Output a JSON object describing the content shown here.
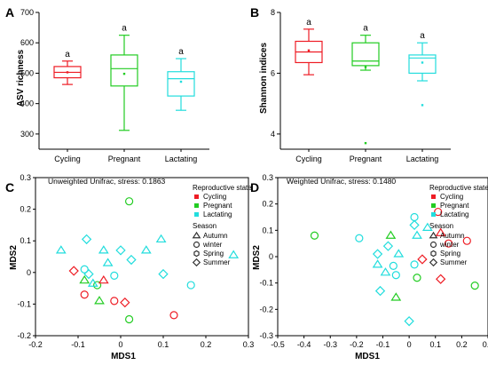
{
  "colors": {
    "cycling": "#ee1c24",
    "pregnant": "#22cc22",
    "lactating": "#22dddd"
  },
  "chart_data": [
    {
      "panel": "A",
      "type": "box",
      "categories": [
        "Cycling",
        "Pregnant",
        "Lactating"
      ],
      "ylabel": "ASV richness",
      "ylim": [
        250,
        700
      ],
      "yticks": [
        300,
        400,
        500,
        600,
        700
      ],
      "significance": [
        "a",
        "a",
        "a"
      ],
      "boxes": [
        {
          "category": "Cycling",
          "color_key": "cycling",
          "whisker_low": 463,
          "q1": 485,
          "median": 503,
          "q3": 522,
          "whisker_high": 540,
          "mean": 503
        },
        {
          "category": "Pregnant",
          "color_key": "pregnant",
          "whisker_low": 312,
          "q1": 458,
          "median": 515,
          "q3": 560,
          "whisker_high": 625,
          "mean": 498
        },
        {
          "category": "Lactating",
          "color_key": "lactating",
          "whisker_low": 378,
          "q1": 425,
          "median": 482,
          "q3": 505,
          "whisker_high": 548,
          "mean": 472
        }
      ],
      "outliers": []
    },
    {
      "panel": "B",
      "type": "box",
      "categories": [
        "Cycling",
        "Pregnant",
        "Lactating"
      ],
      "ylabel": "Shannon indices",
      "ylim": [
        3.5,
        8
      ],
      "yticks": [
        4,
        6,
        8
      ],
      "significance": [
        "a",
        "a",
        "a"
      ],
      "boxes": [
        {
          "category": "Cycling",
          "color_key": "cycling",
          "whisker_low": 5.95,
          "q1": 6.35,
          "median": 6.7,
          "q3": 7.05,
          "whisker_high": 7.45,
          "mean": 6.75
        },
        {
          "category": "Pregnant",
          "color_key": "pregnant",
          "whisker_low": 6.1,
          "q1": 6.25,
          "median": 6.4,
          "q3": 7.0,
          "whisker_high": 7.25,
          "mean": 6.2
        },
        {
          "category": "Lactating",
          "color_key": "lactating",
          "whisker_low": 5.75,
          "q1": 6.0,
          "median": 6.5,
          "q3": 6.6,
          "whisker_high": 7.0,
          "mean": 6.35
        }
      ],
      "outliers": [
        {
          "category": "Pregnant",
          "value": 3.7
        },
        {
          "category": "Lactating",
          "value": 4.95
        }
      ]
    },
    {
      "panel": "C",
      "type": "scatter",
      "annotation": "Unweighted Unifrac, stress: 0.1863",
      "xlabel": "MDS1",
      "ylabel": "MDS2",
      "xlim": [
        -0.2,
        0.3
      ],
      "ylim": [
        -0.2,
        0.3
      ],
      "xticks": [
        -0.2,
        -0.1,
        0.0,
        0.1,
        0.2,
        0.3
      ],
      "yticks": [
        -0.2,
        -0.1,
        0.0,
        0.1,
        0.2,
        0.3
      ],
      "legend": {
        "reproductive_title": "Reproductive state",
        "reproductive": [
          {
            "label": "Cycling",
            "color_key": "cycling"
          },
          {
            "label": "Pregnant",
            "color_key": "pregnant"
          },
          {
            "label": "Lactating",
            "color_key": "lactating"
          }
        ],
        "season_title": "Season",
        "season": [
          {
            "label": "Autumn",
            "shape": "triangle"
          },
          {
            "label": "winter",
            "shape": "circle"
          },
          {
            "label": "Spring",
            "shape": "hexagon"
          },
          {
            "label": "Summer",
            "shape": "diamond"
          }
        ]
      },
      "points": [
        {
          "x": 0.02,
          "y": 0.225,
          "state": "pregnant",
          "shape": "circle"
        },
        {
          "x": -0.14,
          "y": 0.07,
          "state": "lactating",
          "shape": "triangle"
        },
        {
          "x": -0.08,
          "y": 0.105,
          "state": "lactating",
          "shape": "diamond"
        },
        {
          "x": -0.04,
          "y": 0.07,
          "state": "lactating",
          "shape": "triangle"
        },
        {
          "x": 0.0,
          "y": 0.07,
          "state": "lactating",
          "shape": "diamond"
        },
        {
          "x": 0.06,
          "y": 0.07,
          "state": "lactating",
          "shape": "triangle"
        },
        {
          "x": 0.095,
          "y": 0.105,
          "state": "lactating",
          "shape": "triangle"
        },
        {
          "x": 0.265,
          "y": 0.055,
          "state": "lactating",
          "shape": "triangle"
        },
        {
          "x": -0.03,
          "y": 0.03,
          "state": "lactating",
          "shape": "triangle"
        },
        {
          "x": 0.025,
          "y": 0.04,
          "state": "lactating",
          "shape": "diamond"
        },
        {
          "x": -0.11,
          "y": 0.005,
          "state": "cycling",
          "shape": "diamond"
        },
        {
          "x": -0.085,
          "y": 0.01,
          "state": "lactating",
          "shape": "circle"
        },
        {
          "x": -0.075,
          "y": -0.005,
          "state": "lactating",
          "shape": "diamond"
        },
        {
          "x": 0.1,
          "y": -0.005,
          "state": "lactating",
          "shape": "diamond"
        },
        {
          "x": -0.085,
          "y": -0.025,
          "state": "pregnant",
          "shape": "triangle"
        },
        {
          "x": -0.055,
          "y": -0.04,
          "state": "pregnant",
          "shape": "circle"
        },
        {
          "x": -0.065,
          "y": -0.035,
          "state": "lactating",
          "shape": "triangle"
        },
        {
          "x": -0.04,
          "y": -0.025,
          "state": "cycling",
          "shape": "triangle"
        },
        {
          "x": -0.015,
          "y": -0.01,
          "state": "lactating",
          "shape": "circle"
        },
        {
          "x": 0.165,
          "y": -0.04,
          "state": "lactating",
          "shape": "circle"
        },
        {
          "x": -0.085,
          "y": -0.07,
          "state": "cycling",
          "shape": "circle"
        },
        {
          "x": -0.05,
          "y": -0.09,
          "state": "pregnant",
          "shape": "triangle"
        },
        {
          "x": -0.015,
          "y": -0.09,
          "state": "cycling",
          "shape": "circle"
        },
        {
          "x": 0.01,
          "y": -0.095,
          "state": "cycling",
          "shape": "diamond"
        },
        {
          "x": 0.125,
          "y": -0.135,
          "state": "cycling",
          "shape": "circle"
        },
        {
          "x": 0.02,
          "y": -0.148,
          "state": "pregnant",
          "shape": "circle"
        }
      ]
    },
    {
      "panel": "D",
      "type": "scatter",
      "annotation": "Weighted Unifrac, stress: 0.1480",
      "xlabel": "MDS1",
      "ylabel": "MDS2",
      "xlim": [
        -0.5,
        0.3
      ],
      "ylim": [
        -0.3,
        0.3
      ],
      "xticks": [
        -0.5,
        -0.4,
        -0.3,
        -0.2,
        -0.1,
        0.0,
        0.1,
        0.2,
        0.3
      ],
      "yticks": [
        -0.3,
        -0.2,
        -0.1,
        0.0,
        0.1,
        0.2,
        0.3
      ],
      "legend": {
        "reproductive_title": "Reproductive state",
        "reproductive": [
          {
            "label": "Cycling",
            "color_key": "cycling"
          },
          {
            "label": "Pregnant",
            "color_key": "pregnant"
          },
          {
            "label": "Lactating",
            "color_key": "lactating"
          }
        ],
        "season_title": "Season",
        "season": [
          {
            "label": "Autumn",
            "shape": "triangle"
          },
          {
            "label": "winter",
            "shape": "circle"
          },
          {
            "label": "Spring",
            "shape": "hexagon"
          },
          {
            "label": "Summer",
            "shape": "diamond"
          }
        ]
      },
      "points": [
        {
          "x": 0.11,
          "y": 0.17,
          "state": "cycling",
          "shape": "circle"
        },
        {
          "x": 0.02,
          "y": 0.15,
          "state": "lactating",
          "shape": "circle"
        },
        {
          "x": 0.02,
          "y": 0.12,
          "state": "lactating",
          "shape": "diamond"
        },
        {
          "x": -0.36,
          "y": 0.08,
          "state": "pregnant",
          "shape": "circle"
        },
        {
          "x": -0.19,
          "y": 0.07,
          "state": "lactating",
          "shape": "circle"
        },
        {
          "x": -0.07,
          "y": 0.08,
          "state": "pregnant",
          "shape": "triangle"
        },
        {
          "x": 0.03,
          "y": 0.08,
          "state": "lactating",
          "shape": "triangle"
        },
        {
          "x": 0.07,
          "y": 0.11,
          "state": "lactating",
          "shape": "triangle"
        },
        {
          "x": 0.12,
          "y": 0.09,
          "state": "cycling",
          "shape": "triangle"
        },
        {
          "x": 0.15,
          "y": 0.05,
          "state": "cycling",
          "shape": "circle"
        },
        {
          "x": 0.22,
          "y": 0.06,
          "state": "cycling",
          "shape": "circle"
        },
        {
          "x": -0.08,
          "y": 0.04,
          "state": "lactating",
          "shape": "diamond"
        },
        {
          "x": -0.04,
          "y": 0.01,
          "state": "lactating",
          "shape": "triangle"
        },
        {
          "x": 0.05,
          "y": -0.01,
          "state": "cycling",
          "shape": "diamond"
        },
        {
          "x": 0.02,
          "y": -0.03,
          "state": "lactating",
          "shape": "circle"
        },
        {
          "x": -0.12,
          "y": 0.01,
          "state": "lactating",
          "shape": "diamond"
        },
        {
          "x": -0.12,
          "y": -0.03,
          "state": "lactating",
          "shape": "triangle"
        },
        {
          "x": -0.06,
          "y": -0.035,
          "state": "lactating",
          "shape": "circle"
        },
        {
          "x": -0.09,
          "y": -0.06,
          "state": "lactating",
          "shape": "triangle"
        },
        {
          "x": -0.05,
          "y": -0.07,
          "state": "lactating",
          "shape": "circle"
        },
        {
          "x": 0.03,
          "y": -0.08,
          "state": "pregnant",
          "shape": "circle"
        },
        {
          "x": 0.12,
          "y": -0.085,
          "state": "cycling",
          "shape": "diamond"
        },
        {
          "x": 0.25,
          "y": -0.11,
          "state": "pregnant",
          "shape": "circle"
        },
        {
          "x": -0.11,
          "y": -0.13,
          "state": "lactating",
          "shape": "diamond"
        },
        {
          "x": -0.05,
          "y": -0.155,
          "state": "pregnant",
          "shape": "triangle"
        },
        {
          "x": 0.0,
          "y": -0.245,
          "state": "lactating",
          "shape": "diamond"
        }
      ]
    }
  ]
}
